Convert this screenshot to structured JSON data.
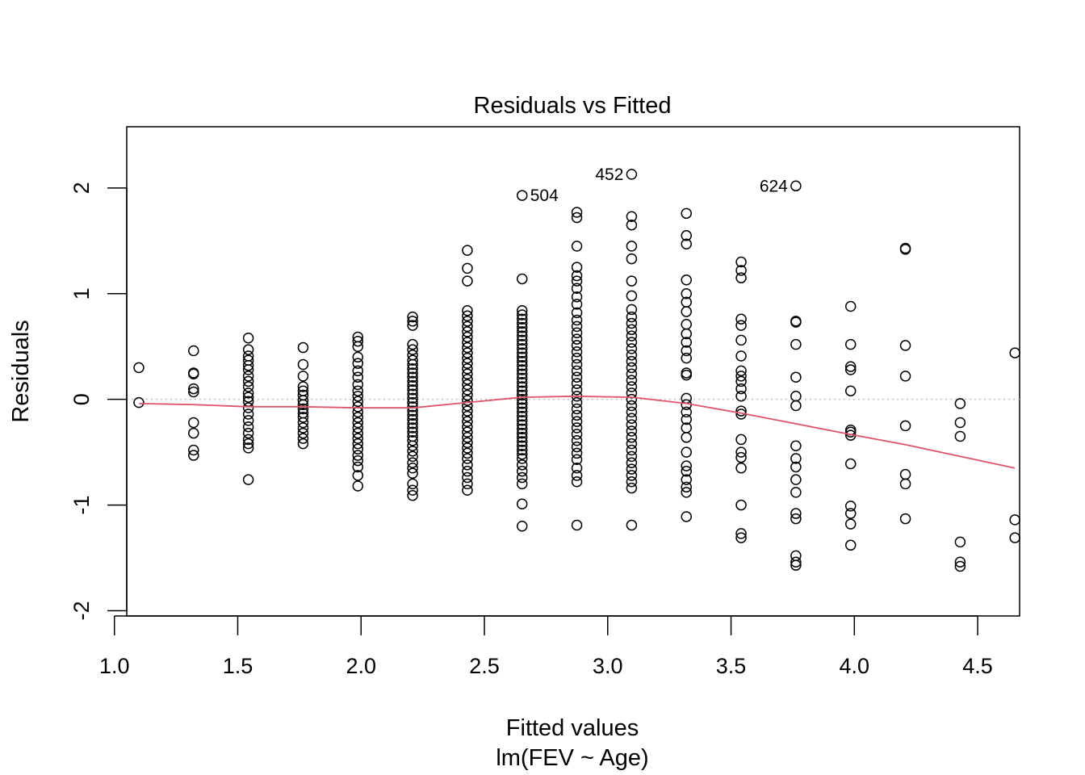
{
  "chart_data": {
    "type": "scatter",
    "title": "Residuals vs Fitted",
    "xlabel": "Fitted values",
    "xsublabel": "lm(FEV ~ Age)",
    "ylabel": "Residuals",
    "xlim": [
      1.05,
      4.67
    ],
    "ylim": [
      -2.05,
      2.58
    ],
    "xticks": [
      1.0,
      1.5,
      2.0,
      2.5,
      3.0,
      3.5,
      4.0,
      4.5
    ],
    "xtick_labels": [
      "1.0",
      "1.5",
      "2.0",
      "2.5",
      "3.0",
      "3.5",
      "4.0",
      "4.5"
    ],
    "yticks": [
      -2,
      -1,
      0,
      1,
      2
    ],
    "ytick_labels": [
      "-2",
      "-1",
      "0",
      "1",
      "2"
    ],
    "grid": false,
    "reference_line": {
      "y": 0,
      "style": "dotted",
      "color": "#bebebe"
    },
    "smooth_color": "#df536b",
    "point_color": "#000000",
    "columns": [
      {
        "x": 1.099,
        "y": [
          0.3,
          -0.03
        ]
      },
      {
        "x": 1.321,
        "y": [
          0.46,
          0.25,
          0.24,
          0.1,
          0.07,
          -0.22,
          -0.32,
          -0.48,
          -0.53
        ]
      },
      {
        "x": 1.543,
        "y": [
          0.58,
          0.47,
          0.41,
          0.37,
          0.32,
          0.28,
          0.22,
          0.17,
          0.12,
          0.06,
          0.02,
          -0.02,
          -0.08,
          -0.14,
          -0.2,
          -0.26,
          -0.32,
          -0.38,
          -0.42,
          -0.46,
          -0.76
        ]
      },
      {
        "x": 1.765,
        "y": [
          0.49,
          0.33,
          0.22,
          0.12,
          0.08,
          0.04,
          -0.01,
          -0.05,
          -0.09,
          -0.13,
          -0.17,
          -0.22,
          -0.27,
          -0.32,
          -0.37,
          -0.42
        ]
      },
      {
        "x": 1.987,
        "y": [
          0.59,
          0.55,
          0.5,
          0.4,
          0.34,
          0.27,
          0.21,
          0.14,
          0.08,
          0.03,
          -0.02,
          -0.07,
          -0.12,
          -0.17,
          -0.22,
          -0.27,
          -0.32,
          -0.37,
          -0.42,
          -0.47,
          -0.53,
          -0.58,
          -0.64,
          -0.72,
          -0.82
        ]
      },
      {
        "x": 2.209,
        "y": [
          0.78,
          0.74,
          0.7,
          0.52,
          0.47,
          0.42,
          0.37,
          0.33,
          0.29,
          0.25,
          0.21,
          0.17,
          0.13,
          0.09,
          0.05,
          0.01,
          -0.03,
          -0.07,
          -0.11,
          -0.15,
          -0.19,
          -0.23,
          -0.27,
          -0.31,
          -0.35,
          -0.39,
          -0.44,
          -0.49,
          -0.54,
          -0.6,
          -0.65,
          -0.7,
          -0.8,
          -0.86,
          -0.91
        ]
      },
      {
        "x": 2.431,
        "y": [
          1.41,
          1.24,
          1.12,
          0.84,
          0.79,
          0.74,
          0.69,
          0.64,
          0.59,
          0.54,
          0.49,
          0.44,
          0.39,
          0.34,
          0.29,
          0.24,
          0.19,
          0.14,
          0.09,
          0.04,
          -0.01,
          -0.06,
          -0.11,
          -0.16,
          -0.21,
          -0.26,
          -0.31,
          -0.36,
          -0.41,
          -0.46,
          -0.51,
          -0.56,
          -0.62,
          -0.68,
          -0.74,
          -0.8,
          -0.86
        ]
      },
      {
        "x": 2.653,
        "y": [
          1.93,
          1.14,
          0.84,
          0.8,
          0.76,
          0.72,
          0.68,
          0.64,
          0.6,
          0.56,
          0.52,
          0.48,
          0.44,
          0.4,
          0.36,
          0.32,
          0.28,
          0.24,
          0.2,
          0.16,
          0.12,
          0.08,
          0.04,
          0.0,
          -0.04,
          -0.08,
          -0.12,
          -0.16,
          -0.2,
          -0.24,
          -0.28,
          -0.32,
          -0.36,
          -0.4,
          -0.44,
          -0.48,
          -0.52,
          -0.56,
          -0.62,
          -0.68,
          -0.74,
          -0.8,
          -0.99,
          -1.2
        ]
      },
      {
        "x": 2.875,
        "y": [
          1.77,
          1.72,
          1.45,
          1.25,
          1.17,
          1.12,
          1.05,
          0.97,
          0.9,
          0.82,
          0.75,
          0.69,
          0.63,
          0.57,
          0.51,
          0.45,
          0.39,
          0.33,
          0.27,
          0.21,
          0.15,
          0.09,
          0.03,
          -0.03,
          -0.09,
          -0.15,
          -0.21,
          -0.27,
          -0.33,
          -0.39,
          -0.45,
          -0.51,
          -0.57,
          -0.65,
          -0.72,
          -0.78,
          -1.19
        ]
      },
      {
        "x": 3.097,
        "y": [
          2.13,
          1.73,
          1.65,
          1.45,
          1.33,
          1.12,
          0.98,
          0.85,
          0.78,
          0.72,
          0.66,
          0.6,
          0.54,
          0.48,
          0.42,
          0.36,
          0.3,
          0.24,
          0.18,
          0.12,
          0.06,
          0.0,
          -0.06,
          -0.12,
          -0.18,
          -0.24,
          -0.3,
          -0.36,
          -0.42,
          -0.48,
          -0.54,
          -0.6,
          -0.66,
          -0.72,
          -0.78,
          -0.84,
          -1.19
        ]
      },
      {
        "x": 3.319,
        "y": [
          1.76,
          1.55,
          1.47,
          1.13,
          1.0,
          0.92,
          0.83,
          0.71,
          0.62,
          0.54,
          0.46,
          0.39,
          0.25,
          0.23,
          0.01,
          -0.05,
          -0.12,
          -0.19,
          -0.27,
          -0.36,
          -0.5,
          -0.63,
          -0.68,
          -0.76,
          -0.83,
          -0.88,
          -1.11
        ]
      },
      {
        "x": 3.541,
        "y": [
          1.3,
          1.22,
          1.15,
          0.76,
          0.7,
          0.56,
          0.41,
          0.27,
          0.22,
          0.17,
          0.1,
          0.03,
          -0.11,
          -0.14,
          -0.38,
          -0.5,
          -0.55,
          -0.65,
          -1.0,
          -1.27,
          -1.31
        ]
      },
      {
        "x": 3.763,
        "y": [
          2.02,
          0.74,
          0.73,
          0.52,
          0.21,
          0.03,
          -0.06,
          -0.44,
          -0.56,
          -0.64,
          -0.76,
          -0.88,
          -1.08,
          -1.13,
          -1.48,
          -1.54,
          -1.57
        ]
      },
      {
        "x": 3.985,
        "y": [
          0.88,
          0.52,
          0.31,
          0.28,
          0.08,
          -0.29,
          -0.31,
          -0.34,
          -0.61,
          -1.01,
          -1.08,
          -1.18,
          -1.38
        ]
      },
      {
        "x": 4.207,
        "y": [
          1.43,
          1.42,
          0.51,
          0.22,
          -0.25,
          -0.71,
          -0.8,
          -1.13
        ]
      },
      {
        "x": 4.429,
        "y": [
          -0.04,
          -0.22,
          -0.35,
          -1.35,
          -1.54,
          -1.58
        ]
      },
      {
        "x": 4.651,
        "y": [
          0.44,
          -1.14,
          -1.31
        ]
      }
    ],
    "smooth": {
      "x": [
        1.1,
        1.32,
        1.54,
        1.76,
        1.99,
        2.21,
        2.43,
        2.65,
        2.87,
        3.1,
        3.32,
        3.54,
        3.76,
        3.98,
        4.21,
        4.43,
        4.65
      ],
      "y": [
        -0.04,
        -0.05,
        -0.07,
        -0.07,
        -0.08,
        -0.08,
        -0.03,
        0.02,
        0.03,
        0.02,
        -0.04,
        -0.13,
        -0.23,
        -0.33,
        -0.43,
        -0.54,
        -0.65
      ]
    },
    "point_labels": [
      {
        "text": "504",
        "x": 2.653,
        "y": 1.93,
        "side": "right"
      },
      {
        "text": "452",
        "x": 3.097,
        "y": 2.13,
        "side": "left"
      },
      {
        "text": "624",
        "x": 3.763,
        "y": 2.02,
        "side": "left"
      }
    ]
  }
}
